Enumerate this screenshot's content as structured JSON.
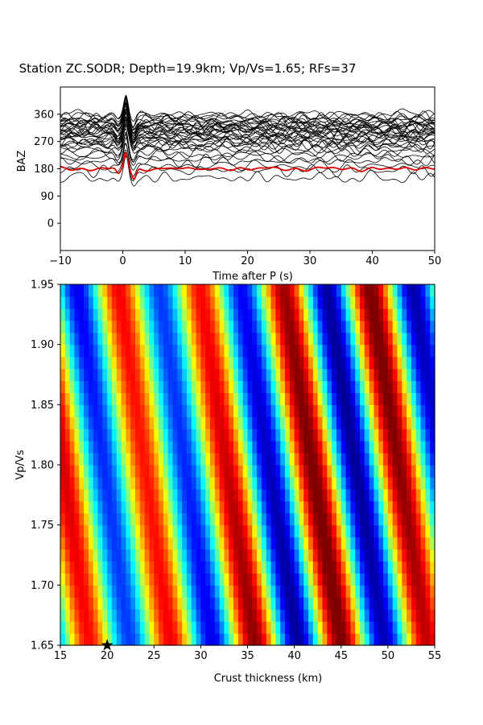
{
  "chart_data": [
    {
      "type": "line",
      "title": "Station ZC.SODR; Depth=19.9km; Vp/Vs=1.65; RFs=37",
      "xlabel": "Time after P (s)",
      "ylabel": "BAZ",
      "xlim": [
        -10,
        50
      ],
      "ylim": [
        -90,
        450
      ],
      "xticks": [
        -10,
        0,
        10,
        20,
        30,
        40,
        50
      ],
      "yticks": [
        0,
        90,
        180,
        270,
        360
      ],
      "xtick_labels": [
        "−10",
        "0",
        "10",
        "20",
        "30",
        "40",
        "50"
      ],
      "ytick_labels": [
        "0",
        "90",
        "180",
        "270",
        "360"
      ],
      "grid": false,
      "series": [
        {
          "baz_values": [
            150,
            175,
            190,
            205,
            215,
            225,
            235,
            245,
            252,
            258,
            263,
            268,
            272,
            276,
            280,
            284,
            288,
            292,
            296,
            300,
            303,
            306,
            309,
            312,
            315,
            318,
            321,
            324,
            327,
            330,
            333,
            336,
            340,
            345,
            350,
            355,
            360
          ],
          "color": "#000000",
          "peak_time_s": 0.5
        },
        {
          "baz_values": [
            180
          ],
          "color": "#e00000",
          "note_peak_time_s": 0.5
        }
      ]
    },
    {
      "type": "heatmap",
      "xlabel": "Crust thickness (km)",
      "ylabel": "Vp/Vs",
      "xlim": [
        15,
        55
      ],
      "ylim": [
        1.65,
        1.95
      ],
      "xticks": [
        15,
        20,
        25,
        30,
        35,
        40,
        45,
        50,
        55
      ],
      "yticks": [
        1.65,
        1.7,
        1.75,
        1.8,
        1.85,
        1.9,
        1.95
      ],
      "xtick_labels": [
        "15",
        "20",
        "25",
        "30",
        "35",
        "40",
        "45",
        "50",
        "55"
      ],
      "ytick_labels": [
        "1.65",
        "1.70",
        "1.75",
        "1.80",
        "1.85",
        "1.90",
        "1.95"
      ],
      "colormap": "jet",
      "grid": false,
      "best_fit": {
        "thickness_km": 20,
        "vpvs": 1.65,
        "marker": "star",
        "color": "#000000"
      }
    }
  ]
}
